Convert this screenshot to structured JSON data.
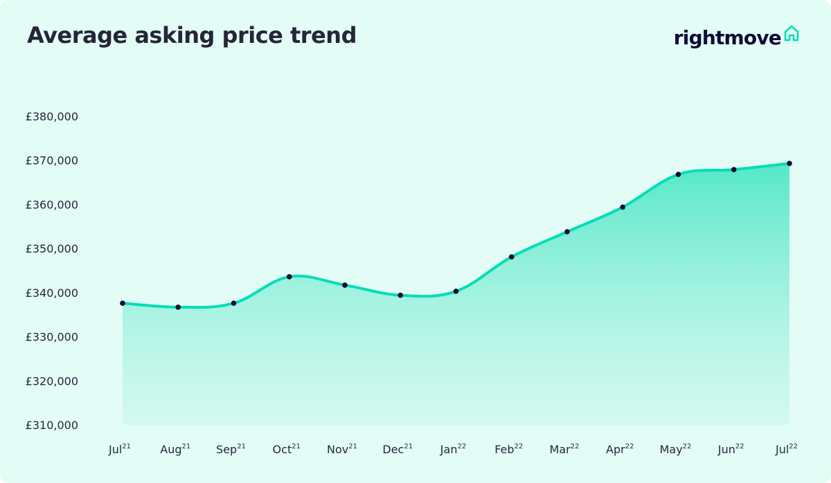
{
  "header": {
    "title": "Average asking price trend",
    "brand": "rightmove"
  },
  "colors": {
    "background": "#e3fcf6",
    "line": "#00deb6",
    "point": "#0e0b33",
    "brand_icon": "#00deb6"
  },
  "chart_data": {
    "type": "area",
    "title": "Average asking price trend",
    "xlabel": "",
    "ylabel": "",
    "categories": [
      {
        "month": "Jul",
        "year": "21"
      },
      {
        "month": "Aug",
        "year": "21"
      },
      {
        "month": "Sep",
        "year": "21"
      },
      {
        "month": "Oct",
        "year": "21"
      },
      {
        "month": "Nov",
        "year": "21"
      },
      {
        "month": "Dec",
        "year": "21"
      },
      {
        "month": "Jan",
        "year": "22"
      },
      {
        "month": "Feb",
        "year": "22"
      },
      {
        "month": "Mar",
        "year": "22"
      },
      {
        "month": "Apr",
        "year": "22"
      },
      {
        "month": "May",
        "year": "22"
      },
      {
        "month": "Jun",
        "year": "22"
      },
      {
        "month": "Jul",
        "year": "22"
      }
    ],
    "values": [
      337600,
      336700,
      337600,
      343600,
      341700,
      339400,
      340300,
      348100,
      353800,
      359400,
      366800,
      367900,
      369300
    ],
    "ylim": [
      310000,
      380000
    ],
    "yticks": [
      "£310,000",
      "£320,000",
      "£330,000",
      "£340,000",
      "£350,000",
      "£360,000",
      "£370,000",
      "£380,000"
    ],
    "ytick_values": [
      310000,
      320000,
      330000,
      340000,
      350000,
      360000,
      370000,
      380000
    ],
    "grid": false,
    "legend": "none"
  }
}
